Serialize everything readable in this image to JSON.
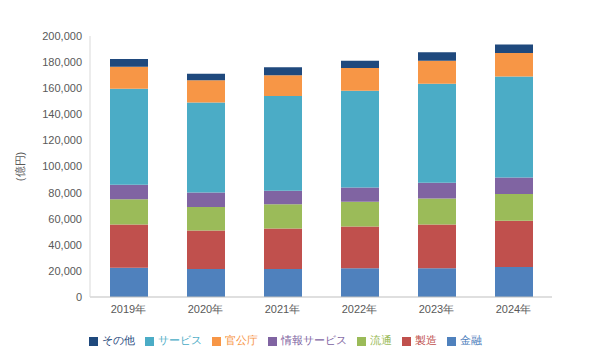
{
  "chart_data": {
    "type": "bar",
    "stacked": true,
    "grid": false,
    "legend": "bottom",
    "y_label": "(億円)",
    "categories": [
      "2019年",
      "2020年",
      "2021年",
      "2022年",
      "2023年",
      "2024年"
    ],
    "ylim": [
      0,
      200000
    ],
    "yticks": [
      0,
      {
        "value": 20000,
        "label": "20,000"
      },
      {
        "value": 40000,
        "label": "40,000"
      },
      {
        "value": 60000,
        "label": "60,000"
      },
      {
        "value": 80000,
        "label": "80,000"
      },
      {
        "value": 100000,
        "label": "100,000"
      },
      {
        "value": 120000,
        "label": "120,000"
      },
      {
        "value": 140000,
        "label": "140,000"
      },
      {
        "value": 160000,
        "label": "160,000"
      },
      {
        "value": 180000,
        "label": "180,000"
      },
      {
        "value": 200000,
        "label": "200,000"
      }
    ],
    "series": [
      {
        "name": "金融",
        "color": "#4f81bd",
        "values": [
          22500,
          21500,
          21500,
          22000,
          22000,
          23000
        ]
      },
      {
        "name": "製造",
        "color": "#c0504d",
        "values": [
          33000,
          29500,
          31000,
          32000,
          33500,
          35500
        ]
      },
      {
        "name": "流通",
        "color": "#9bbb59",
        "values": [
          19500,
          18000,
          18500,
          19000,
          20000,
          20500
        ]
      },
      {
        "name": "情報サービス",
        "color": "#8064a2",
        "values": [
          11000,
          11000,
          10500,
          11000,
          12000,
          12500
        ]
      },
      {
        "name": "サービス",
        "color": "#4bacc6",
        "values": [
          73500,
          69000,
          72500,
          74000,
          76000,
          77500
        ]
      },
      {
        "name": "官公庁",
        "color": "#f79646",
        "values": [
          17000,
          17000,
          16000,
          17500,
          17500,
          18000
        ]
      },
      {
        "name": "その他",
        "color": "#1f497d",
        "values": [
          5800,
          5000,
          6000,
          5500,
          6500,
          6500
        ]
      }
    ]
  }
}
